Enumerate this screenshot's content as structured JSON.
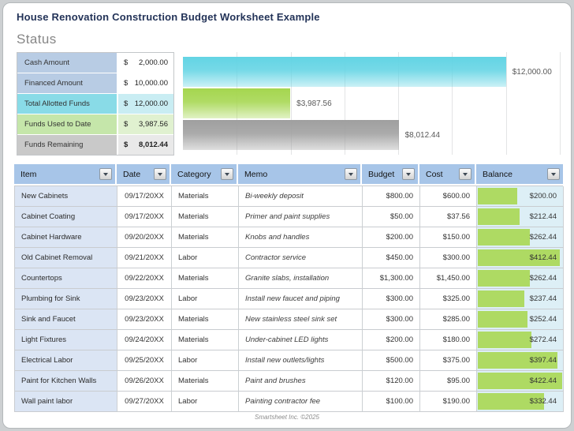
{
  "header": {
    "title": "House Renovation Construction Budget Worksheet Example"
  },
  "status": {
    "heading": "Status",
    "rows": [
      {
        "label": "Cash Amount",
        "currency": "$",
        "amount": "2,000.00",
        "label_bg": "#b8cce4",
        "value_bg": "#ffffff",
        "bold": false
      },
      {
        "label": "Financed Amount",
        "currency": "$",
        "amount": "10,000.00",
        "label_bg": "#b8cce4",
        "value_bg": "#ffffff",
        "bold": false
      },
      {
        "label": "Total Allotted Funds",
        "currency": "$",
        "amount": "12,000.00",
        "label_bg": "#89dbe7",
        "value_bg": "#c9edf3",
        "bold": false
      },
      {
        "label": "Funds Used to Date",
        "currency": "$",
        "amount": "3,987.56",
        "label_bg": "#c5e6aa",
        "value_bg": "#e0f1d0",
        "bold": false
      },
      {
        "label": "Funds Remaining",
        "currency": "$",
        "amount": "8,012.44",
        "label_bg": "#c9c9c9",
        "value_bg": "#e9e9e9",
        "bold": true
      }
    ]
  },
  "chart_data": {
    "type": "bar",
    "orientation": "horizontal",
    "title": "",
    "categories": [
      "Total Allotted Funds",
      "Funds Used to Date",
      "Funds Remaining"
    ],
    "values": [
      12000,
      3987.56,
      8012.44
    ],
    "value_labels": [
      "$12,000.00",
      "$3,987.56",
      "$8,012.44"
    ],
    "bar_colors": [
      "#63d4e4",
      "#a5d64f",
      "#9f9f9f"
    ],
    "xlim": [
      0,
      14000
    ],
    "gridline_step": 2000,
    "grid": true,
    "legend": false,
    "value_label_color": "#595959"
  },
  "table": {
    "columns": [
      {
        "label": "Item"
      },
      {
        "label": "Date"
      },
      {
        "label": "Category"
      },
      {
        "label": "Memo"
      },
      {
        "label": "Budget"
      },
      {
        "label": "Cost"
      },
      {
        "label": "Balance"
      }
    ],
    "balance_bar_max": 422.44,
    "balance_bar_color": "#aeda63",
    "rows": [
      {
        "item": "New Cabinets",
        "date": "09/17/20XX",
        "category": "Materials",
        "memo": "Bi-weekly deposit",
        "budget": "$800.00",
        "cost": "$600.00",
        "balance": "$200.00",
        "balance_value": 200.0
      },
      {
        "item": "Cabinet Coating",
        "date": "09/17/20XX",
        "category": "Materials",
        "memo": "Primer and paint supplies",
        "budget": "$50.00",
        "cost": "$37.56",
        "balance": "$212.44",
        "balance_value": 212.44
      },
      {
        "item": "Cabinet Hardware",
        "date": "09/20/20XX",
        "category": "Materials",
        "memo": "Knobs and handles",
        "budget": "$200.00",
        "cost": "$150.00",
        "balance": "$262.44",
        "balance_value": 262.44
      },
      {
        "item": "Old Cabinet Removal",
        "date": "09/21/20XX",
        "category": "Labor",
        "memo": "Contractor service",
        "budget": "$450.00",
        "cost": "$300.00",
        "balance": "$412.44",
        "balance_value": 412.44
      },
      {
        "item": "Countertops",
        "date": "09/22/20XX",
        "category": "Materials",
        "memo": "Granite slabs, installation",
        "budget": "$1,300.00",
        "cost": "$1,450.00",
        "balance": "$262.44",
        "balance_value": 262.44
      },
      {
        "item": "Plumbing for Sink",
        "date": "09/23/20XX",
        "category": "Labor",
        "memo": "Install new faucet and piping",
        "budget": "$300.00",
        "cost": "$325.00",
        "balance": "$237.44",
        "balance_value": 237.44
      },
      {
        "item": "Sink and Faucet",
        "date": "09/23/20XX",
        "category": "Materials",
        "memo": "New stainless steel sink set",
        "budget": "$300.00",
        "cost": "$285.00",
        "balance": "$252.44",
        "balance_value": 252.44
      },
      {
        "item": "Light Fixtures",
        "date": "09/24/20XX",
        "category": "Materials",
        "memo": "Under-cabinet LED lights",
        "budget": "$200.00",
        "cost": "$180.00",
        "balance": "$272.44",
        "balance_value": 272.44
      },
      {
        "item": "Electrical Labor",
        "date": "09/25/20XX",
        "category": "Labor",
        "memo": "Install new outlets/lights",
        "budget": "$500.00",
        "cost": "$375.00",
        "balance": "$397.44",
        "balance_value": 397.44
      },
      {
        "item": "Paint for Kitchen Walls",
        "date": "09/26/20XX",
        "category": "Materials",
        "memo": "Paint and brushes",
        "budget": "$120.00",
        "cost": "$95.00",
        "balance": "$422.44",
        "balance_value": 422.44
      },
      {
        "item": "Wall paint labor",
        "date": "09/27/20XX",
        "category": "Labor",
        "memo": "Painting contractor fee",
        "budget": "$100.00",
        "cost": "$190.00",
        "balance": "$332.44",
        "balance_value": 332.44
      }
    ]
  },
  "footer": {
    "text": "Smartsheet Inc. ©2025"
  }
}
